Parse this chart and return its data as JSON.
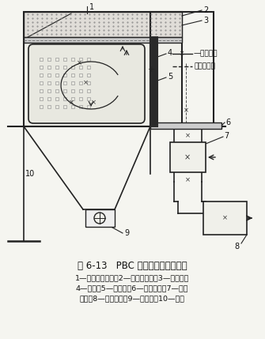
{
  "title": "图 6-13   PBC 型旁插扁袋式除尘器",
  "caption_line1": "1—含尘气体入口；2—气体分布网；3—过滤室；",
  "caption_line2": "4—扁袋；5—净气室；6—检修平台；7—反吸",
  "caption_line3": "风阀；8—净气总管；9—排灰器；10—灰斗",
  "bg_color": "#f5f5f0",
  "line_color": "#222222"
}
